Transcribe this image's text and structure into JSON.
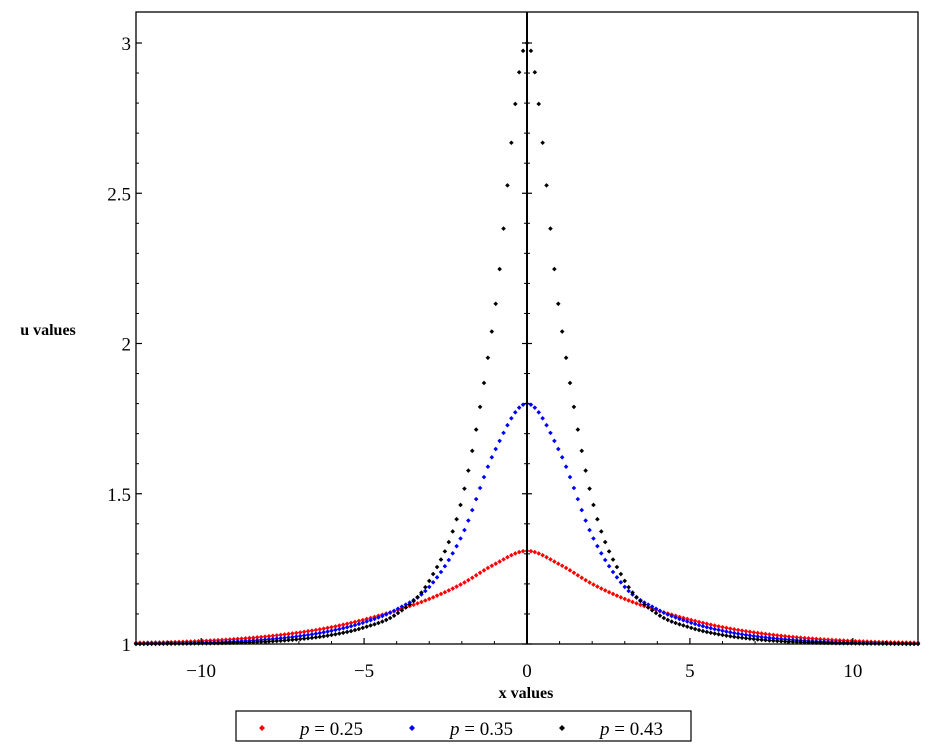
{
  "chart_data": {
    "type": "scatter",
    "xlabel": "x values",
    "ylabel": "u values",
    "xlim": [
      -12,
      12
    ],
    "ylim": [
      1,
      3.1
    ],
    "x_ticks": [
      -10,
      -5,
      0,
      5,
      10
    ],
    "x_tick_labels": [
      "−10",
      "−5",
      "0",
      "5",
      "10"
    ],
    "y_ticks": [
      1,
      1.5,
      2,
      2.5,
      3
    ],
    "y_tick_labels": [
      "1",
      "1.5",
      "2",
      "2.5",
      "3"
    ],
    "grid": false,
    "legend_position": "bottom",
    "x": [
      -12,
      -11,
      -10,
      -9,
      -8,
      -7,
      -6,
      -5,
      -4,
      -3,
      -2,
      -1,
      0,
      1,
      2,
      3,
      4,
      5,
      6,
      7,
      8,
      9,
      10,
      11,
      12
    ],
    "series": [
      {
        "name": "p = 0.25",
        "legend_var": "p",
        "legend_value": " = 0.25",
        "color": "#ff0000",
        "values": [
          1.004,
          1.006,
          1.01,
          1.016,
          1.025,
          1.038,
          1.056,
          1.081,
          1.112,
          1.15,
          1.2,
          1.265,
          1.31,
          1.265,
          1.2,
          1.15,
          1.112,
          1.081,
          1.056,
          1.038,
          1.025,
          1.016,
          1.01,
          1.006,
          1.004
        ]
      },
      {
        "name": "p = 0.35",
        "legend_var": "p",
        "legend_value": " = 0.35",
        "color": "#0000ff",
        "values": [
          1.001,
          1.002,
          1.004,
          1.008,
          1.015,
          1.026,
          1.044,
          1.072,
          1.115,
          1.19,
          1.36,
          1.64,
          1.8,
          1.64,
          1.36,
          1.19,
          1.115,
          1.072,
          1.044,
          1.026,
          1.015,
          1.008,
          1.004,
          1.002,
          1.001
        ]
      },
      {
        "name": "p = 0.43",
        "legend_var": "p",
        "legend_value": " = 0.43",
        "color": "#000000",
        "values": [
          1.0,
          1.001,
          1.002,
          1.004,
          1.008,
          1.016,
          1.03,
          1.055,
          1.1,
          1.21,
          1.48,
          2.1,
          3.0,
          2.1,
          1.48,
          1.21,
          1.1,
          1.055,
          1.03,
          1.016,
          1.008,
          1.004,
          1.002,
          1.001,
          1.0
        ]
      }
    ]
  }
}
